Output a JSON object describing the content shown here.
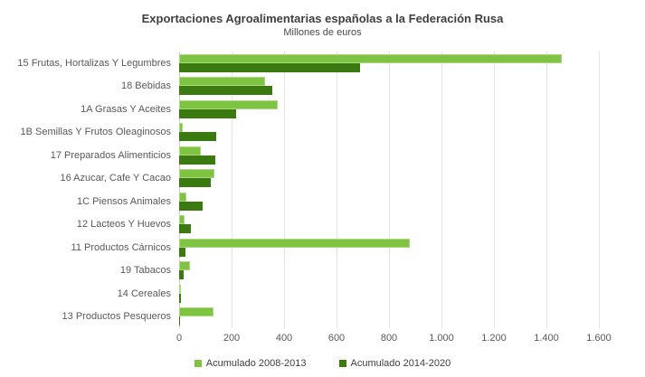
{
  "chart_data": {
    "type": "bar",
    "orientation": "horizontal",
    "title": "Exportaciones Agroalimentarias españolas a la Federación Rusa",
    "subtitle": "Millones de euros",
    "categories": [
      "15 Frutas, Hortalizas Y Legumbres",
      "18 Bebidas",
      "1A Grasas Y Aceites",
      "1B Semillas Y Frutos Oleaginosos",
      "17 Preparados Alimenticios",
      "16 Azucar, Cafe Y Cacao",
      "1C Piensos Animales",
      "12 Lacteos Y Huevos",
      "11 Productos Cárnicos",
      "19 Tabacos",
      "14 Cereales",
      "13 Productos Pesqueros"
    ],
    "series": [
      {
        "name": "Acumulado 2008-2013",
        "color": "#7ec342",
        "values": [
          1460,
          327,
          375,
          13,
          84,
          133,
          28,
          21,
          878,
          42,
          2,
          132
        ]
      },
      {
        "name": "Acumulado 2014-2020",
        "color": "#3a7a10",
        "values": [
          690,
          355,
          218,
          142,
          139,
          121,
          91,
          44,
          24,
          18,
          8,
          2
        ]
      }
    ],
    "xlim": [
      0,
      1600
    ],
    "x_ticks": [
      0,
      200,
      400,
      600,
      800,
      1000,
      1200,
      1400,
      1600
    ],
    "x_tick_labels": [
      "0",
      "200",
      "400",
      "600",
      "800",
      "1.000",
      "1.200",
      "1.400",
      "1.600"
    ],
    "grid": "vertical",
    "legend_position": "bottom",
    "background_color": "#ffffff",
    "gridline_color": "#e4e4e4"
  }
}
